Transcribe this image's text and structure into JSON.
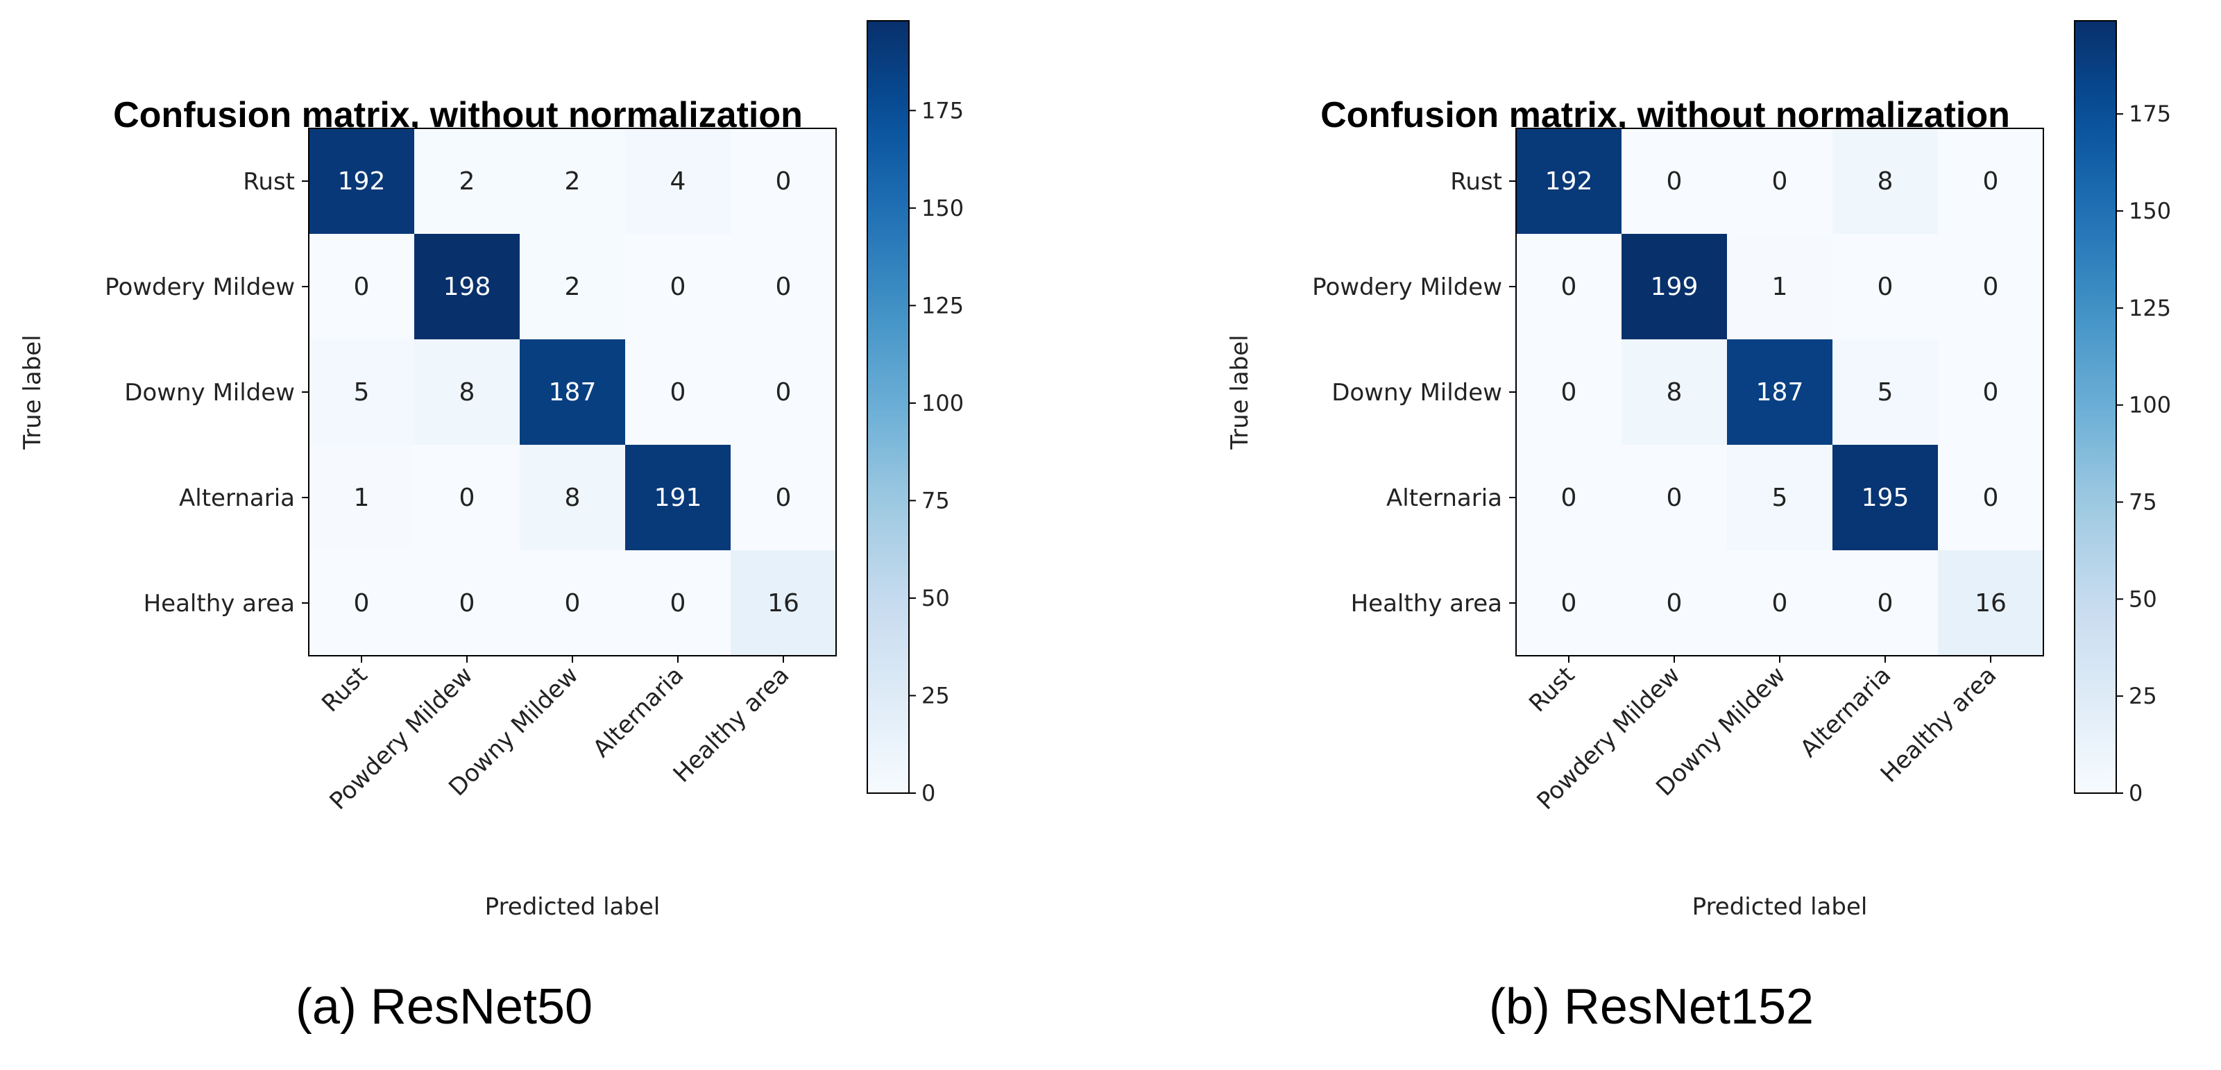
{
  "chart_data": [
    {
      "type": "heatmap",
      "title": "Confusion matrix, without normalization",
      "caption": "(a) ResNet50",
      "xlabel": "Predicted label",
      "ylabel": "True label",
      "categories": [
        "Rust",
        "Powdery Mildew",
        "Downy Mildew",
        "Alternaria",
        "Healthy area"
      ],
      "matrix": [
        [
          192,
          2,
          2,
          4,
          0
        ],
        [
          0,
          198,
          2,
          0,
          0
        ],
        [
          5,
          8,
          187,
          0,
          0
        ],
        [
          1,
          0,
          8,
          191,
          0
        ],
        [
          0,
          0,
          0,
          0,
          16
        ]
      ],
      "colorbar": {
        "range": [
          0,
          198
        ],
        "ticks": [
          0,
          25,
          50,
          75,
          100,
          125,
          150,
          175
        ],
        "colormap": "Blues"
      }
    },
    {
      "type": "heatmap",
      "title": "Confusion matrix, without normalization",
      "caption": "(b) ResNet152",
      "xlabel": "Predicted label",
      "ylabel": "True label",
      "categories": [
        "Rust",
        "Powdery Mildew",
        "Downy Mildew",
        "Alternaria",
        "Healthy area"
      ],
      "matrix": [
        [
          192,
          0,
          0,
          8,
          0
        ],
        [
          0,
          199,
          1,
          0,
          0
        ],
        [
          0,
          8,
          187,
          5,
          0
        ],
        [
          0,
          0,
          5,
          195,
          0
        ],
        [
          0,
          0,
          0,
          0,
          16
        ]
      ],
      "colorbar": {
        "range": [
          0,
          199
        ],
        "ticks": [
          0,
          25,
          50,
          75,
          100,
          125,
          150,
          175
        ],
        "colormap": "Blues"
      }
    }
  ]
}
